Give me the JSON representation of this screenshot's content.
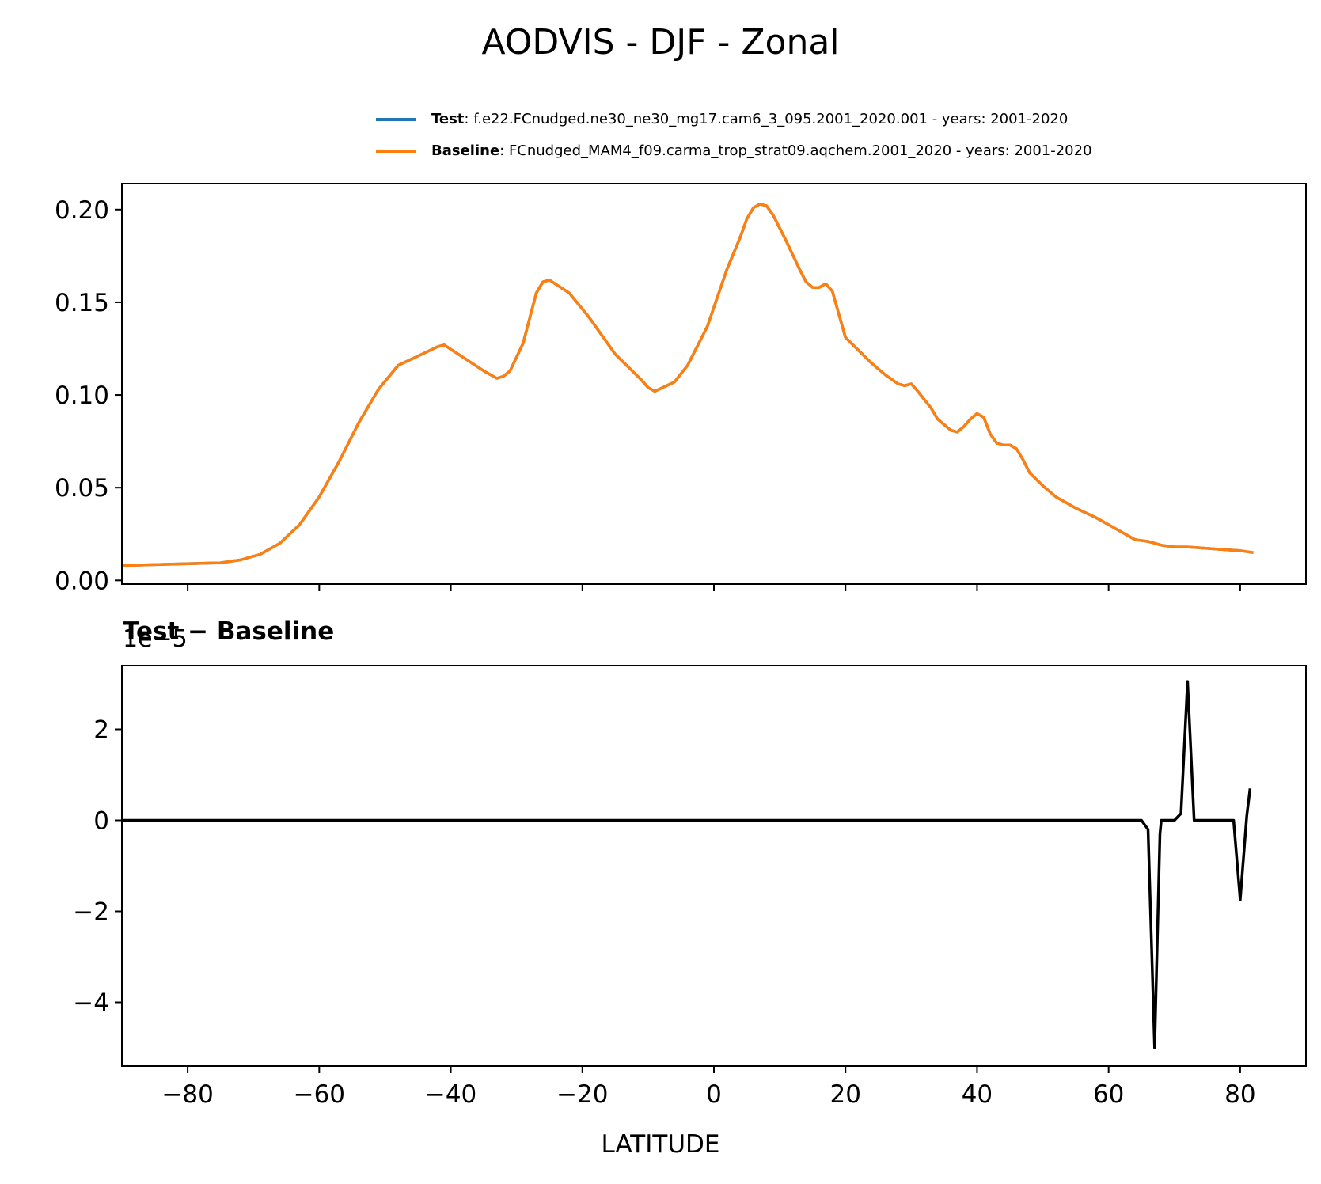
{
  "title": "AODVIS - DJF - Zonal",
  "legend": [
    {
      "name": "Test",
      "desc": ": f.e22.FCnudged.ne30_ne30_mg17.cam6_3_095.2001_2020.001 - years: 2001-2020",
      "color": "#1f77b4"
    },
    {
      "name": "Baseline",
      "desc": ": FCnudged_MAM4_f09.carma_trop_strat09.aqchem.2001_2020 - years: 2001-2020",
      "color": "#ff7f0e"
    }
  ],
  "diff_title": "Test − Baseline",
  "diff_offset_text": "1e−5",
  "xlabel": "LATITUDE",
  "chart_data": [
    {
      "type": "line",
      "name": "zonal-mean",
      "xlim": [
        -90,
        90
      ],
      "ylim": [
        -0.002,
        0.214
      ],
      "xticks": [
        -80,
        -60,
        -40,
        -20,
        0,
        20,
        40,
        60,
        80
      ],
      "yticks": [
        0.0,
        0.05,
        0.1,
        0.15,
        0.2
      ],
      "ytick_labels": [
        "0.00",
        "0.05",
        "0.10",
        "0.15",
        "0.20"
      ],
      "series": [
        {
          "name": "Test",
          "color": "#1f77b4",
          "x": [
            -90,
            -85,
            -80,
            -75,
            -72,
            -69,
            -66,
            -63,
            -60,
            -57,
            -54,
            -51,
            -48,
            -45,
            -42,
            -41,
            -38,
            -35,
            -33,
            -32,
            -31,
            -29,
            -27,
            -26,
            -25,
            -22,
            -19,
            -15,
            -11,
            -10,
            -9,
            -6,
            -4,
            -1,
            2,
            4,
            5,
            6,
            7,
            8,
            9,
            11,
            13,
            14,
            15,
            16,
            17,
            18,
            20,
            22,
            24,
            26,
            28,
            29,
            30,
            31,
            33,
            34,
            36,
            37,
            38,
            39,
            40,
            41,
            42,
            43,
            44,
            45,
            46,
            47,
            48,
            50,
            52,
            55,
            58,
            60,
            62,
            64,
            66,
            68,
            70,
            72,
            74,
            76,
            78,
            80,
            82
          ],
          "y": [
            0.008,
            0.0085,
            0.009,
            0.0095,
            0.011,
            0.014,
            0.02,
            0.03,
            0.045,
            0.064,
            0.085,
            0.103,
            0.116,
            0.121,
            0.126,
            0.127,
            0.12,
            0.113,
            0.109,
            0.11,
            0.113,
            0.128,
            0.155,
            0.161,
            0.162,
            0.155,
            0.142,
            0.122,
            0.108,
            0.104,
            0.102,
            0.107,
            0.116,
            0.137,
            0.168,
            0.185,
            0.195,
            0.201,
            0.203,
            0.202,
            0.197,
            0.183,
            0.168,
            0.161,
            0.158,
            0.158,
            0.16,
            0.156,
            0.131,
            0.124,
            0.117,
            0.111,
            0.106,
            0.105,
            0.106,
            0.102,
            0.093,
            0.087,
            0.081,
            0.08,
            0.083,
            0.087,
            0.09,
            0.088,
            0.079,
            0.074,
            0.073,
            0.073,
            0.071,
            0.065,
            0.058,
            0.051,
            0.045,
            0.039,
            0.034,
            0.03,
            0.026,
            0.022,
            0.021,
            0.019,
            0.018,
            0.018,
            0.0175,
            0.017,
            0.0165,
            0.016,
            0.015
          ]
        },
        {
          "name": "Baseline",
          "color": "#ff7f0e",
          "x": [
            -90,
            -85,
            -80,
            -75,
            -72,
            -69,
            -66,
            -63,
            -60,
            -57,
            -54,
            -51,
            -48,
            -45,
            -42,
            -41,
            -38,
            -35,
            -33,
            -32,
            -31,
            -29,
            -27,
            -26,
            -25,
            -22,
            -19,
            -15,
            -11,
            -10,
            -9,
            -6,
            -4,
            -1,
            2,
            4,
            5,
            6,
            7,
            8,
            9,
            11,
            13,
            14,
            15,
            16,
            17,
            18,
            20,
            22,
            24,
            26,
            28,
            29,
            30,
            31,
            33,
            34,
            36,
            37,
            38,
            39,
            40,
            41,
            42,
            43,
            44,
            45,
            46,
            47,
            48,
            50,
            52,
            55,
            58,
            60,
            62,
            64,
            66,
            68,
            70,
            72,
            74,
            76,
            78,
            80,
            82
          ],
          "y": [
            0.008,
            0.0085,
            0.009,
            0.0095,
            0.011,
            0.014,
            0.02,
            0.03,
            0.045,
            0.064,
            0.085,
            0.103,
            0.116,
            0.121,
            0.126,
            0.127,
            0.12,
            0.113,
            0.109,
            0.11,
            0.113,
            0.128,
            0.155,
            0.161,
            0.162,
            0.155,
            0.142,
            0.122,
            0.108,
            0.104,
            0.102,
            0.107,
            0.116,
            0.137,
            0.168,
            0.185,
            0.195,
            0.201,
            0.203,
            0.202,
            0.197,
            0.183,
            0.168,
            0.161,
            0.158,
            0.158,
            0.16,
            0.156,
            0.131,
            0.124,
            0.117,
            0.111,
            0.106,
            0.105,
            0.106,
            0.102,
            0.093,
            0.087,
            0.081,
            0.08,
            0.083,
            0.087,
            0.09,
            0.088,
            0.079,
            0.074,
            0.073,
            0.073,
            0.071,
            0.065,
            0.058,
            0.051,
            0.045,
            0.039,
            0.034,
            0.03,
            0.026,
            0.022,
            0.021,
            0.019,
            0.018,
            0.018,
            0.0175,
            0.017,
            0.0165,
            0.016,
            0.015
          ]
        }
      ]
    },
    {
      "type": "line",
      "name": "difference",
      "title": "Test − Baseline",
      "xlabel": "LATITUDE",
      "scale": "1e-5",
      "xlim": [
        -90,
        90
      ],
      "ylim": [
        -5.4,
        3.4
      ],
      "xticks": [
        -80,
        -60,
        -40,
        -20,
        0,
        20,
        40,
        60,
        80
      ],
      "xtick_labels": [
        "−80",
        "−60",
        "−40",
        "−20",
        "0",
        "20",
        "40",
        "60",
        "80"
      ],
      "yticks": [
        -4,
        -2,
        0,
        2
      ],
      "ytick_labels": [
        "−4",
        "−2",
        "0",
        "2"
      ],
      "series": [
        {
          "name": "Test − Baseline",
          "color": "#000000",
          "x": [
            -90,
            65,
            66,
            67,
            67.8,
            68,
            70,
            71,
            72,
            73,
            74,
            76,
            78,
            79,
            80,
            81,
            81.5
          ],
          "y": [
            0,
            0,
            -0.2,
            -5.0,
            -0.3,
            0,
            0,
            0.15,
            3.05,
            0,
            0,
            0,
            0,
            0,
            -1.75,
            0.1,
            0.7
          ]
        }
      ]
    }
  ]
}
